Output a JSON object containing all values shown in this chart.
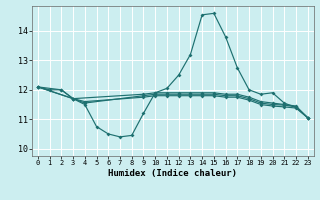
{
  "xlabel": "Humidex (Indice chaleur)",
  "bg_color": "#cceef0",
  "grid_color": "#ffffff",
  "line_color": "#1e7070",
  "xlim": [
    -0.5,
    23.5
  ],
  "ylim": [
    9.75,
    14.85
  ],
  "xticks": [
    0,
    1,
    2,
    3,
    4,
    5,
    6,
    7,
    8,
    9,
    10,
    11,
    12,
    13,
    14,
    15,
    16,
    17,
    18,
    19,
    20,
    21,
    22,
    23
  ],
  "yticks": [
    10,
    11,
    12,
    13,
    14
  ],
  "lines": [
    {
      "x": [
        0,
        1,
        2,
        3,
        4,
        5,
        6,
        7,
        8,
        9,
        10,
        11,
        12,
        13,
        14,
        15,
        16,
        17,
        18,
        19,
        20,
        21,
        22,
        23
      ],
      "y": [
        12.1,
        12.0,
        12.0,
        11.7,
        11.5,
        10.75,
        10.5,
        10.4,
        10.45,
        11.2,
        11.9,
        12.05,
        12.5,
        13.2,
        14.55,
        14.6,
        13.8,
        12.75,
        12.0,
        11.85,
        11.9,
        11.55,
        11.4,
        11.05
      ]
    },
    {
      "x": [
        0,
        2,
        3,
        9,
        10,
        11,
        12,
        13,
        14,
        15,
        16,
        17,
        18,
        19,
        20,
        21,
        22,
        23
      ],
      "y": [
        12.1,
        12.0,
        11.7,
        11.85,
        11.9,
        11.9,
        11.9,
        11.9,
        11.9,
        11.9,
        11.85,
        11.85,
        11.75,
        11.6,
        11.55,
        11.5,
        11.45,
        11.05
      ]
    },
    {
      "x": [
        0,
        3,
        4,
        9,
        10,
        11,
        12,
        13,
        14,
        15,
        16,
        17,
        18,
        19,
        20,
        21,
        22,
        23
      ],
      "y": [
        12.1,
        11.7,
        11.55,
        11.8,
        11.85,
        11.85,
        11.85,
        11.85,
        11.85,
        11.85,
        11.8,
        11.8,
        11.7,
        11.55,
        11.5,
        11.48,
        11.42,
        11.05
      ]
    },
    {
      "x": [
        0,
        3,
        4,
        9,
        10,
        11,
        12,
        13,
        14,
        15,
        16,
        17,
        18,
        19,
        20,
        21,
        22,
        23
      ],
      "y": [
        12.1,
        11.7,
        11.6,
        11.75,
        11.8,
        11.8,
        11.8,
        11.8,
        11.8,
        11.8,
        11.75,
        11.75,
        11.65,
        11.5,
        11.45,
        11.42,
        11.38,
        11.05
      ]
    }
  ]
}
